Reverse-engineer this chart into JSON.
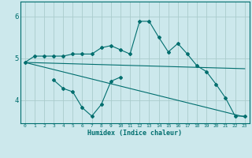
{
  "xlabel": "Humidex (Indice chaleur)",
  "bg_color": "#cce8ec",
  "line_color": "#006e6e",
  "grid_color": "#aacccc",
  "x_ticks": [
    0,
    1,
    2,
    3,
    4,
    5,
    6,
    7,
    8,
    9,
    10,
    11,
    12,
    13,
    14,
    15,
    16,
    17,
    18,
    19,
    20,
    21,
    22,
    23
  ],
  "y_ticks": [
    4,
    5,
    6
  ],
  "ylim": [
    3.45,
    6.35
  ],
  "xlim": [
    -0.5,
    23.5
  ],
  "line1_x": [
    0,
    1,
    2,
    3,
    4,
    5,
    6,
    7,
    8,
    9,
    10,
    11,
    12,
    13,
    14,
    15,
    16,
    17,
    18,
    19,
    20,
    21,
    22,
    23
  ],
  "line1_y": [
    4.9,
    5.05,
    5.05,
    5.05,
    5.05,
    5.1,
    5.1,
    5.1,
    5.25,
    5.3,
    5.2,
    5.1,
    5.88,
    5.88,
    5.5,
    5.15,
    5.35,
    5.1,
    4.82,
    4.68,
    4.38,
    4.05,
    3.62,
    3.62
  ],
  "line2_x": [
    0,
    23
  ],
  "line2_y": [
    4.9,
    3.6
  ],
  "line3_x": [
    0,
    23
  ],
  "line3_y": [
    4.9,
    4.75
  ],
  "line4_x": [
    3,
    4,
    5,
    6,
    7,
    8,
    9,
    10
  ],
  "line4_y": [
    4.48,
    4.28,
    4.2,
    3.82,
    3.62,
    3.9,
    4.45,
    4.55
  ]
}
